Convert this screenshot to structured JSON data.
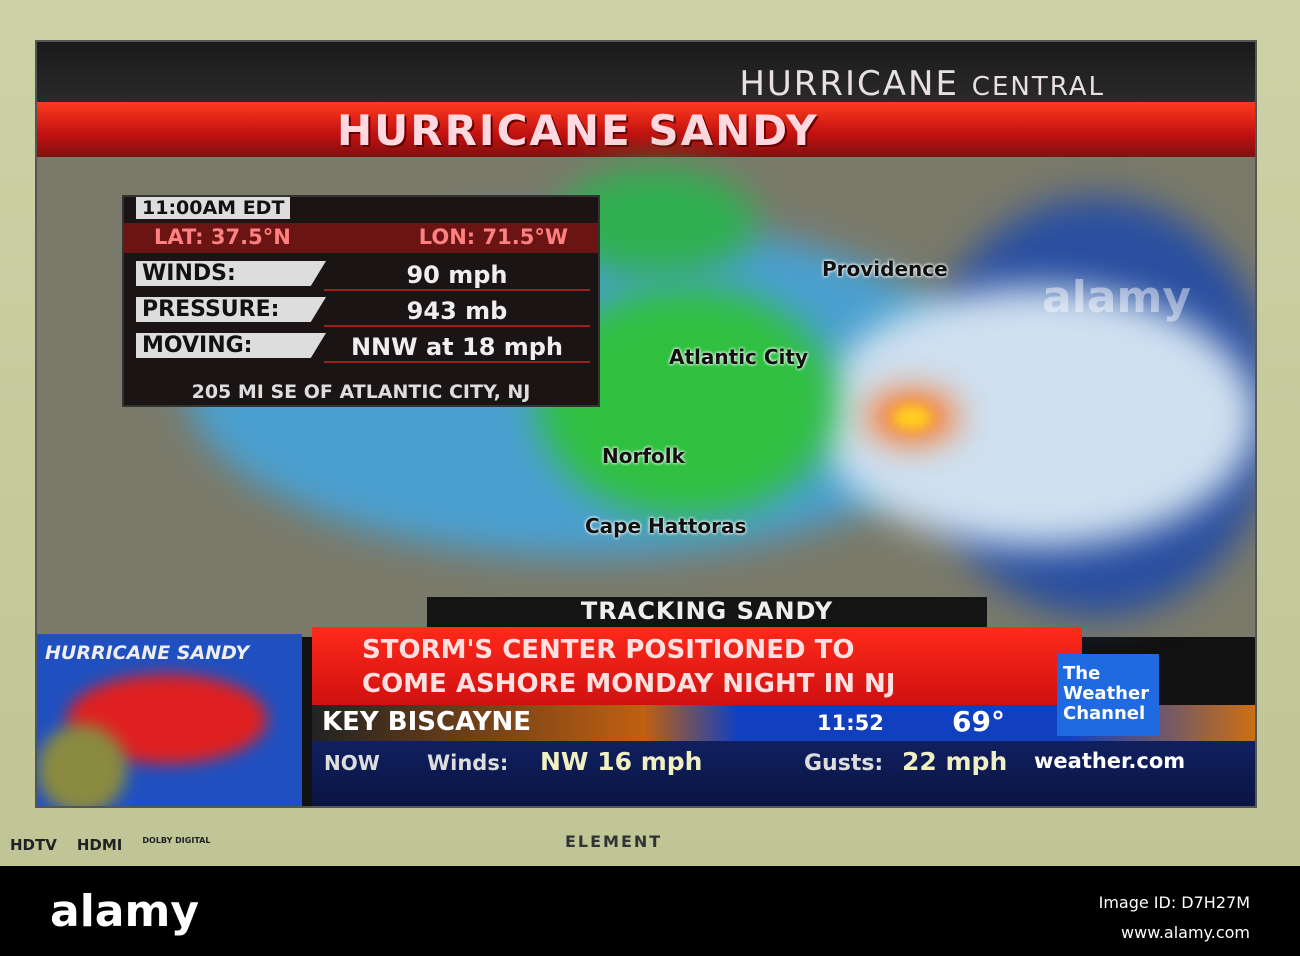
{
  "header": {
    "network_title": "HURRICANE",
    "network_title_small": "CENTRAL",
    "storm_title": "HURRICANE SANDY"
  },
  "info_box": {
    "time": "11:00AM EDT",
    "lat": "LAT: 37.5°N",
    "lon": "LON: 71.5°W",
    "rows": [
      {
        "label": "WINDS:",
        "value": "90 mph"
      },
      {
        "label": "PRESSURE:",
        "value": "943 mb"
      },
      {
        "label": "MOVING:",
        "value": "NNW at 18 mph"
      }
    ],
    "distance": "205 MI SE OF ATLANTIC CITY, NJ"
  },
  "map_labels": [
    "Providence",
    "Atlantic City",
    "Norfolk",
    "Cape Hattoras"
  ],
  "tracking": "TRACKING SANDY",
  "inset_title": "HURRICANE SANDY",
  "headline": [
    "STORM'S CENTER POSITIONED TO",
    "COME ASHORE MONDAY NIGHT IN NJ"
  ],
  "channel": {
    "logo": [
      "The",
      "Weather",
      "Channel"
    ],
    "site": "weather.com"
  },
  "ticker": {
    "city": "KEY BISCAYNE",
    "time": "11:52",
    "temp": "69°",
    "now": "NOW",
    "winds_label": "Winds:",
    "winds": "NW 16 mph",
    "gusts_label": "Gusts:",
    "gusts": "22 mph"
  },
  "tv": {
    "logos": [
      "HDTV",
      "HDMI",
      "DOLBY DIGITAL"
    ],
    "brand": "ELEMENT"
  },
  "watermark": {
    "logo": "alamy",
    "image_id": "Image ID: D7H27M",
    "site": "www.alamy.com"
  }
}
